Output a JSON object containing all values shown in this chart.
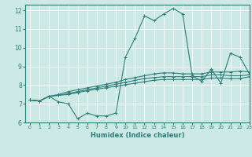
{
  "title": "",
  "xlabel": "Humidex (Indice chaleur)",
  "xlim": [
    -0.5,
    23
  ],
  "ylim": [
    6,
    12.3
  ],
  "xticks": [
    0,
    1,
    2,
    3,
    4,
    5,
    6,
    7,
    8,
    9,
    10,
    11,
    12,
    13,
    14,
    15,
    16,
    17,
    18,
    19,
    20,
    21,
    22,
    23
  ],
  "yticks": [
    6,
    7,
    8,
    9,
    10,
    11,
    12
  ],
  "bg_color": "#cce9e5",
  "line_color": "#2e7d78",
  "grid_color": "#ffffff",
  "lines": [
    [
      7.2,
      7.15,
      7.4,
      7.1,
      7.0,
      6.2,
      6.5,
      6.35,
      6.35,
      6.5,
      9.5,
      10.5,
      11.7,
      11.45,
      11.8,
      12.1,
      11.8,
      8.5,
      8.2,
      8.85,
      8.1,
      9.7,
      9.5,
      8.6
    ],
    [
      7.2,
      7.15,
      7.4,
      7.5,
      7.65,
      7.75,
      7.85,
      7.95,
      8.05,
      8.15,
      8.3,
      8.4,
      8.5,
      8.6,
      8.65,
      8.65,
      8.6,
      8.6,
      8.6,
      8.7,
      8.7,
      8.7,
      8.75,
      8.7
    ],
    [
      7.2,
      7.15,
      7.4,
      7.45,
      7.55,
      7.65,
      7.75,
      7.85,
      7.95,
      8.05,
      8.15,
      8.25,
      8.35,
      8.4,
      8.45,
      8.45,
      8.45,
      8.45,
      8.45,
      8.55,
      8.55,
      8.5,
      8.5,
      8.55
    ],
    [
      7.2,
      7.15,
      7.4,
      7.45,
      7.5,
      7.6,
      7.7,
      7.78,
      7.86,
      7.94,
      8.02,
      8.1,
      8.18,
      8.26,
      8.3,
      8.3,
      8.3,
      8.3,
      8.3,
      8.38,
      8.38,
      8.35,
      8.35,
      8.45
    ]
  ]
}
